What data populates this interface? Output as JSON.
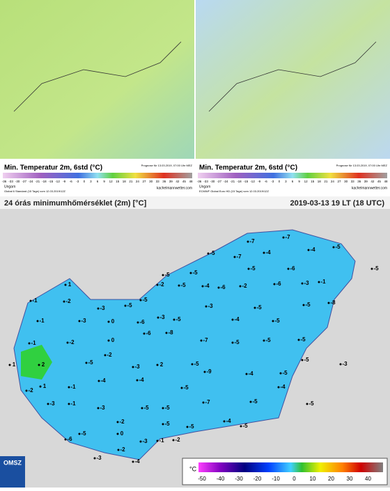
{
  "top_panels": [
    {
      "title": "Min. Temperatur 2m, 6std (°C)",
      "forecast": "Prognose für 13.03.2019, 07:00 Uhr MEZ",
      "region": "Ungarn",
      "model": "Global 6 Standard (15 Tage) vom 12.03.2019/12Z",
      "source": "kachelmannwetter.com"
    },
    {
      "title": "Min. Temperatur 2m, 6std (°C)",
      "forecast": "Prognose für 13.03.2019, 07:00 Uhr MEZ",
      "region": "Ungarn",
      "model": "ECMWF Global Euro HD (15 Tage) vom 12.03.2019/12Z",
      "source": "kachelmannwetter.com"
    }
  ],
  "scale_ticks": [
    -36,
    -33,
    -30,
    -27,
    -24,
    -21,
    -18,
    -15,
    -12,
    -9,
    -6,
    -3,
    0,
    3,
    6,
    9,
    12,
    15,
    18,
    21,
    24,
    27,
    30,
    33,
    36,
    39,
    42,
    45,
    48
  ],
  "main_map": {
    "title": "24 órás minimumhőmérséklet (2m) [°C]",
    "time": "2019-03-13 19 LT (18 UTC)",
    "logo": "OMSZ",
    "legend_unit": "°C",
    "legend_ticks": [
      -50,
      -40,
      -30,
      -20,
      -10,
      0,
      10,
      20,
      30,
      40
    ]
  },
  "stations": [
    -7,
    -7,
    -4,
    -4,
    -5,
    -5,
    -7,
    -5,
    -6,
    -5,
    -5,
    -5,
    -2,
    -5,
    -4,
    -6,
    -2,
    -6,
    -3,
    -1,
    1,
    -1,
    -2,
    -3,
    -5,
    -5,
    -3,
    -5,
    -5,
    -8,
    -1,
    -3,
    0,
    -6,
    -3,
    -5,
    -4,
    -5,
    -1,
    -2,
    0,
    -6,
    -8,
    -7,
    -5,
    -5,
    -5,
    1,
    2,
    -5,
    -2,
    -3,
    2,
    -5,
    -9,
    -4,
    -5,
    -5,
    -3,
    -2,
    1,
    -1,
    -4,
    -4,
    -5,
    -4,
    -3,
    -1,
    -3,
    -5,
    -5,
    -7,
    -5,
    -5,
    -2,
    -5,
    -4,
    -5,
    -5,
    -6,
    -5,
    0,
    -3,
    -1,
    -2,
    -2,
    -3,
    -4
  ]
}
